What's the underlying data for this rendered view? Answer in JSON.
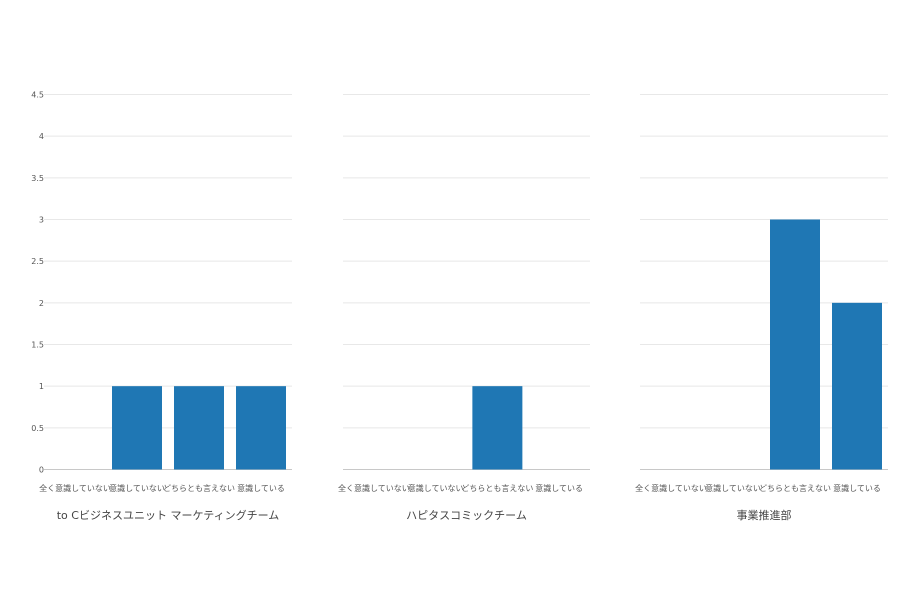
{
  "chart_data": {
    "type": "bar",
    "layout": "faceted",
    "ylim": [
      0,
      4.5
    ],
    "y_ticks": [
      "0",
      "0.5",
      "1",
      "1.5",
      "2",
      "2.5",
      "3",
      "3.5",
      "4",
      "4.5"
    ],
    "grid": true,
    "bar_color": "#1f77b4",
    "categories": [
      "全く意識していない",
      "意識していない",
      "どちらとも言えない",
      "意識している"
    ],
    "panels": [
      {
        "title": "to Cビジネスユニット マーケティングチーム",
        "values": [
          0,
          1,
          1,
          1
        ]
      },
      {
        "title": "ハピタスコミックチーム",
        "values": [
          0,
          0,
          1,
          0
        ]
      },
      {
        "title": "事業推進部",
        "values": [
          0,
          0,
          3,
          2
        ]
      }
    ]
  }
}
